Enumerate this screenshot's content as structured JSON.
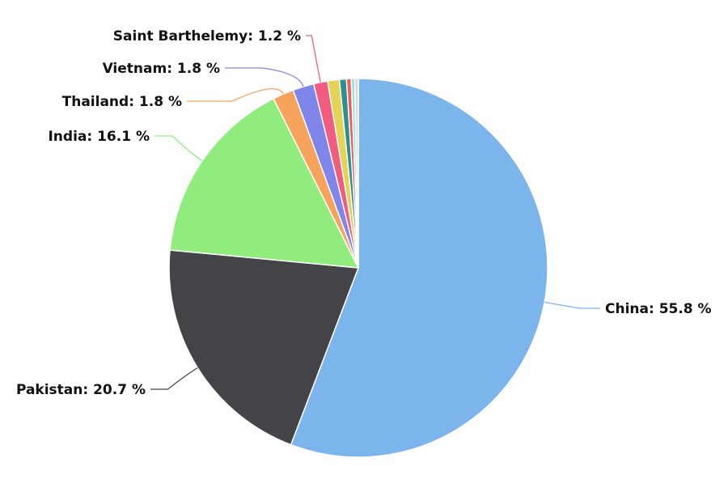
{
  "chart_data": {
    "type": "pie",
    "title": "",
    "start_angle_deg": 0,
    "direction": "clockwise",
    "slices": [
      {
        "name": "China",
        "value": 55.8,
        "label": "China: 55.8 %",
        "color": "#7cb5ec",
        "show_label": true
      },
      {
        "name": "Pakistan",
        "value": 20.7,
        "label": "Pakistan: 20.7 %",
        "color": "#434348",
        "show_label": true
      },
      {
        "name": "India",
        "value": 16.1,
        "label": "India: 16.1 %",
        "color": "#90ed7d",
        "show_label": true
      },
      {
        "name": "Thailand",
        "value": 1.8,
        "label": "Thailand: 1.8 %",
        "color": "#f7a35c",
        "show_label": true
      },
      {
        "name": "Vietnam",
        "value": 1.8,
        "label": "Vietnam: 1.8 %",
        "color": "#8085e9",
        "show_label": true
      },
      {
        "name": "Saint Barthelemy",
        "value": 1.2,
        "label": "Saint Barthelemy: 1.2 %",
        "color": "#f15c80",
        "show_label": true
      },
      {
        "value": 1.0,
        "color": "#e4d354",
        "show_label": false
      },
      {
        "value": 0.6,
        "color": "#2b908f",
        "show_label": false
      },
      {
        "value": 0.4,
        "color": "#f45b5b",
        "show_label": false
      },
      {
        "value": 0.3,
        "color": "#91e8e1",
        "show_label": false
      },
      {
        "value": 0.3,
        "color": "#d9d9d9",
        "show_label": false
      }
    ]
  }
}
